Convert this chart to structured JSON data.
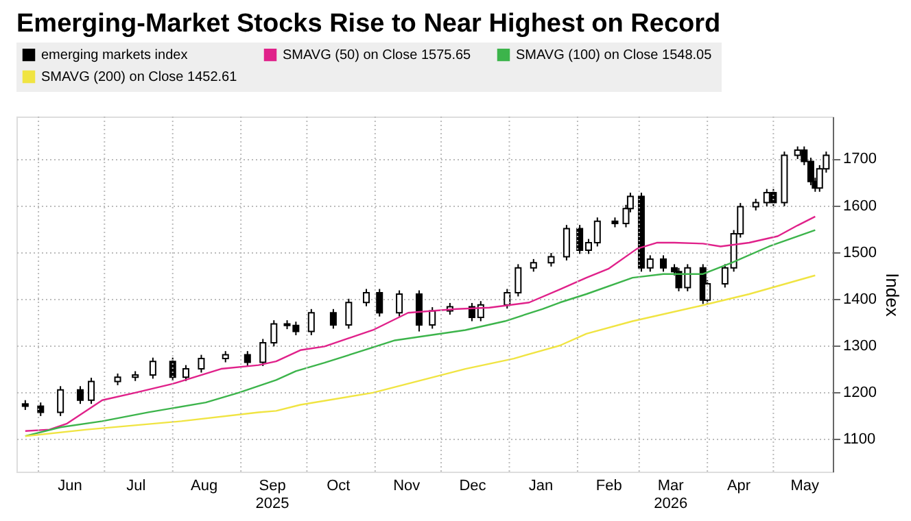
{
  "chart_data": {
    "type": "candlestick",
    "title": "Emerging-Market Stocks Rise to Near Highest on Record",
    "ylabel": "Index",
    "series": [
      {
        "name": "emerging markets index",
        "type": "candlestick",
        "color": "#000000",
        "x": [
          "2025-05-26",
          "2025-06-02",
          "2025-06-11",
          "2025-06-20",
          "2025-06-25",
          "2025-07-07",
          "2025-07-15",
          "2025-07-23",
          "2025-08-01",
          "2025-08-07",
          "2025-08-14",
          "2025-08-25",
          "2025-09-04",
          "2025-09-11",
          "2025-09-16",
          "2025-09-22",
          "2025-09-26",
          "2025-10-03",
          "2025-10-13",
          "2025-10-20",
          "2025-10-28",
          "2025-11-03",
          "2025-11-12",
          "2025-11-21",
          "2025-11-27",
          "2025-12-05",
          "2025-12-15",
          "2025-12-19",
          "2025-12-31",
          "2026-01-05",
          "2026-01-12",
          "2026-01-20",
          "2026-01-27",
          "2026-02-02",
          "2026-02-06",
          "2026-02-10",
          "2026-02-18",
          "2026-02-23",
          "2026-02-25",
          "2026-03-02",
          "2026-03-06",
          "2026-03-12",
          "2026-03-17",
          "2026-03-19",
          "2026-03-23",
          "2026-03-30",
          "2026-04-01",
          "2026-04-09",
          "2026-04-13",
          "2026-04-16",
          "2026-04-23",
          "2026-04-28",
          "2026-05-01",
          "2026-05-06",
          "2026-05-12",
          "2026-05-15",
          "2026-05-18",
          "2026-05-20",
          "2026-05-22",
          "2026-05-25"
        ],
        "ohlc": [
          [
            1175,
            1183,
            1162,
            1170
          ],
          [
            1170,
            1178,
            1149,
            1157
          ],
          [
            1157,
            1213,
            1149,
            1205
          ],
          [
            1205,
            1213,
            1175,
            1183
          ],
          [
            1183,
            1231,
            1175,
            1223
          ],
          [
            1223,
            1240,
            1215,
            1232
          ],
          [
            1232,
            1245,
            1224,
            1237
          ],
          [
            1237,
            1274,
            1229,
            1266
          ],
          [
            1266,
            1274,
            1224,
            1232
          ],
          [
            1232,
            1258,
            1224,
            1250
          ],
          [
            1250,
            1280,
            1242,
            1272
          ],
          [
            1272,
            1288,
            1264,
            1280
          ],
          [
            1280,
            1288,
            1256,
            1264
          ],
          [
            1264,
            1314,
            1256,
            1306
          ],
          [
            1306,
            1354,
            1298,
            1346
          ],
          [
            1346,
            1354,
            1335,
            1343
          ],
          [
            1343,
            1351,
            1322,
            1330
          ],
          [
            1330,
            1378,
            1322,
            1370
          ],
          [
            1370,
            1378,
            1336,
            1344
          ],
          [
            1344,
            1400,
            1336,
            1392
          ],
          [
            1392,
            1421,
            1384,
            1413
          ],
          [
            1413,
            1421,
            1362,
            1370
          ],
          [
            1370,
            1418,
            1362,
            1410
          ],
          [
            1410,
            1418,
            1330,
            1344
          ],
          [
            1344,
            1382,
            1336,
            1374
          ],
          [
            1374,
            1391,
            1366,
            1383
          ],
          [
            1383,
            1391,
            1352,
            1360
          ],
          [
            1360,
            1395,
            1352,
            1387
          ],
          [
            1387,
            1421,
            1379,
            1413
          ],
          [
            1413,
            1474,
            1405,
            1466
          ],
          [
            1466,
            1485,
            1458,
            1477
          ],
          [
            1477,
            1498,
            1469,
            1490
          ],
          [
            1490,
            1558,
            1482,
            1550
          ],
          [
            1550,
            1558,
            1496,
            1504
          ],
          [
            1504,
            1528,
            1496,
            1520
          ],
          [
            1520,
            1574,
            1512,
            1566
          ],
          [
            1566,
            1574,
            1553,
            1561
          ],
          [
            1561,
            1601,
            1553,
            1593
          ],
          [
            1593,
            1627,
            1585,
            1619
          ],
          [
            1619,
            1627,
            1458,
            1466
          ],
          [
            1466,
            1493,
            1458,
            1485
          ],
          [
            1485,
            1493,
            1458,
            1466
          ],
          [
            1466,
            1474,
            1450,
            1458
          ],
          [
            1458,
            1466,
            1416,
            1424
          ],
          [
            1424,
            1474,
            1416,
            1466
          ],
          [
            1466,
            1474,
            1389,
            1397
          ],
          [
            1397,
            1440,
            1389,
            1432
          ],
          [
            1432,
            1474,
            1424,
            1466
          ],
          [
            1466,
            1547,
            1458,
            1539
          ],
          [
            1539,
            1605,
            1531,
            1597
          ],
          [
            1597,
            1614,
            1589,
            1606
          ],
          [
            1606,
            1635,
            1598,
            1627
          ],
          [
            1627,
            1635,
            1598,
            1606
          ],
          [
            1606,
            1715,
            1598,
            1707
          ],
          [
            1707,
            1726,
            1699,
            1718
          ],
          [
            1718,
            1726,
            1686,
            1694
          ],
          [
            1694,
            1702,
            1643,
            1651
          ],
          [
            1651,
            1659,
            1629,
            1637
          ],
          [
            1637,
            1686,
            1629,
            1678
          ],
          [
            1678,
            1715,
            1670,
            1707
          ]
        ]
      },
      {
        "name": "SMAVG (50)  on Close 1575.65",
        "type": "line",
        "color": "#e0218a",
        "x": [
          "2025-05-26",
          "2025-06-06",
          "2025-06-14",
          "2025-06-30",
          "2025-07-15",
          "2025-08-01",
          "2025-08-23",
          "2025-09-09",
          "2025-09-17",
          "2025-09-28",
          "2025-10-09",
          "2025-10-31",
          "2025-11-16",
          "2025-12-08",
          "2025-12-23",
          "2026-01-10",
          "2026-01-24",
          "2026-02-05",
          "2026-02-15",
          "2026-02-28",
          "2026-03-09",
          "2026-03-17",
          "2026-03-30",
          "2026-04-07",
          "2026-04-20",
          "2026-05-03",
          "2026-05-12",
          "2026-05-20"
        ],
        "values": [
          1117,
          1120,
          1133,
          1183,
          1199,
          1218,
          1250,
          1258,
          1266,
          1290,
          1298,
          1333,
          1370,
          1378,
          1381,
          1392,
          1420,
          1445,
          1464,
          1507,
          1520,
          1520,
          1518,
          1512,
          1520,
          1534,
          1557,
          1576
        ]
      },
      {
        "name": "SMAVG (100)  on Close 1548.05",
        "type": "line",
        "color": "#3cb44b",
        "x": [
          "2025-05-26",
          "2025-06-11",
          "2025-06-30",
          "2025-07-21",
          "2025-08-16",
          "2025-08-31",
          "2025-09-17",
          "2025-09-26",
          "2025-10-09",
          "2025-11-10",
          "2025-12-12",
          "2025-12-30",
          "2026-01-16",
          "2026-01-24",
          "2026-02-05",
          "2026-02-26",
          "2026-03-12",
          "2026-03-30",
          "2026-04-12",
          "2026-04-29",
          "2026-05-20"
        ],
        "values": [
          1106,
          1125,
          1138,
          1157,
          1178,
          1199,
          1226,
          1245,
          1263,
          1311,
          1333,
          1352,
          1378,
          1392,
          1410,
          1445,
          1453,
          1453,
          1477,
          1512,
          1547
        ]
      },
      {
        "name": "SMAVG (200)  on Close 1452.61",
        "type": "line",
        "color": "#f0e442",
        "x": [
          "2025-05-26",
          "2025-06-23",
          "2025-08-05",
          "2025-09-09",
          "2025-09-17",
          "2025-09-28",
          "2025-10-31",
          "2025-12-12",
          "2026-01-03",
          "2026-01-24",
          "2026-02-05",
          "2026-02-26",
          "2026-03-28",
          "2026-04-20",
          "2026-05-20"
        ],
        "values": [
          1106,
          1120,
          1138,
          1157,
          1160,
          1173,
          1199,
          1250,
          1272,
          1300,
          1325,
          1352,
          1384,
          1410,
          1450
        ]
      }
    ],
    "xlim": [
      "2025-05-22",
      "2026-05-28"
    ],
    "xticks": [
      {
        "value": "2025-06-15",
        "label": "Jun"
      },
      {
        "value": "2025-07-15",
        "label": "Jul"
      },
      {
        "value": "2025-08-15",
        "label": "Aug"
      },
      {
        "value": "2025-09-15",
        "label": "Sep\n2025"
      },
      {
        "value": "2025-10-15",
        "label": "Oct"
      },
      {
        "value": "2025-11-15",
        "label": "Nov"
      },
      {
        "value": "2025-12-15",
        "label": "Dec"
      },
      {
        "value": "2026-01-15",
        "label": "Jan"
      },
      {
        "value": "2026-02-15",
        "label": "Feb"
      },
      {
        "value": "2026-03-15",
        "label": "Mar\n2026"
      },
      {
        "value": "2026-04-15",
        "label": "Apr"
      },
      {
        "value": "2026-05-15",
        "label": "May"
      }
    ],
    "ylim": [
      1030,
      1790
    ],
    "yticks": [
      1100,
      1200,
      1300,
      1400,
      1500,
      1600,
      1700
    ],
    "grid": true,
    "legend": "top"
  }
}
